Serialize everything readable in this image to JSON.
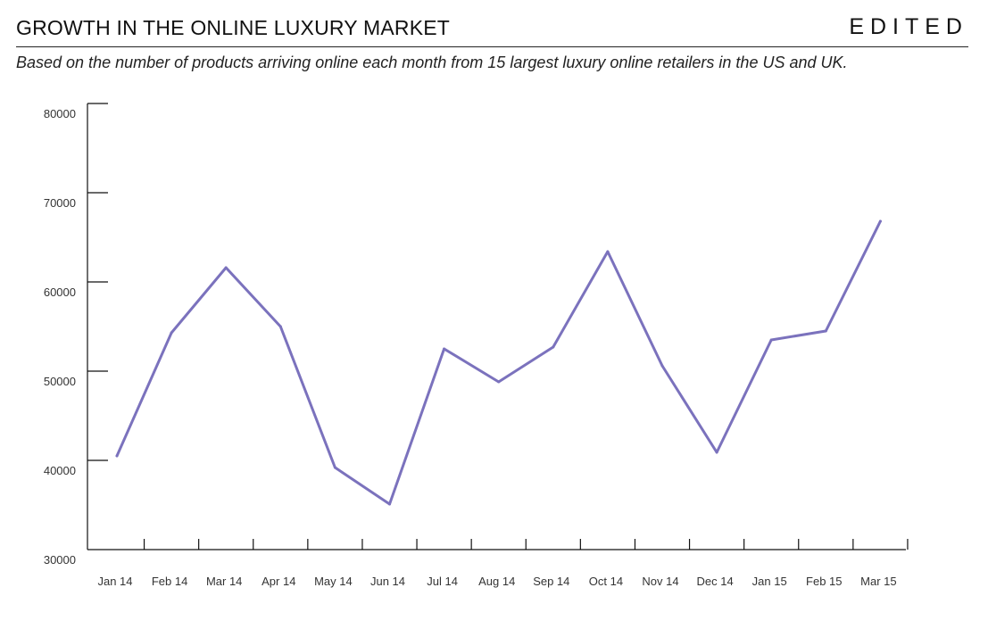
{
  "header": {
    "title": "GROWTH IN THE ONLINE LUXURY MARKET",
    "brand": "EDITED",
    "subtitle": "Based on the number of products arriving online each month from 15 largest luxury online retailers in the US and UK."
  },
  "chart_data": {
    "type": "line",
    "categories": [
      "Jan 14",
      "Feb 14",
      "Mar 14",
      "Apr 14",
      "May 14",
      "Jun 14",
      "Jul 14",
      "Aug 14",
      "Sep 14",
      "Oct 14",
      "Nov 14",
      "Dec 14",
      "Jan 15",
      "Feb 15",
      "Mar 15"
    ],
    "series": [
      {
        "values": [
          40500,
          54300,
          61600,
          55000,
          39200,
          35100,
          52500,
          48800,
          52700,
          63400,
          50600,
          40900,
          53500,
          54500,
          66800
        ],
        "color": "#7b72bd"
      }
    ],
    "ylim": [
      30000,
      80000
    ],
    "yticks": [
      30000,
      40000,
      50000,
      60000,
      70000,
      80000
    ],
    "grid": false,
    "xlabel": "",
    "ylabel": ""
  }
}
